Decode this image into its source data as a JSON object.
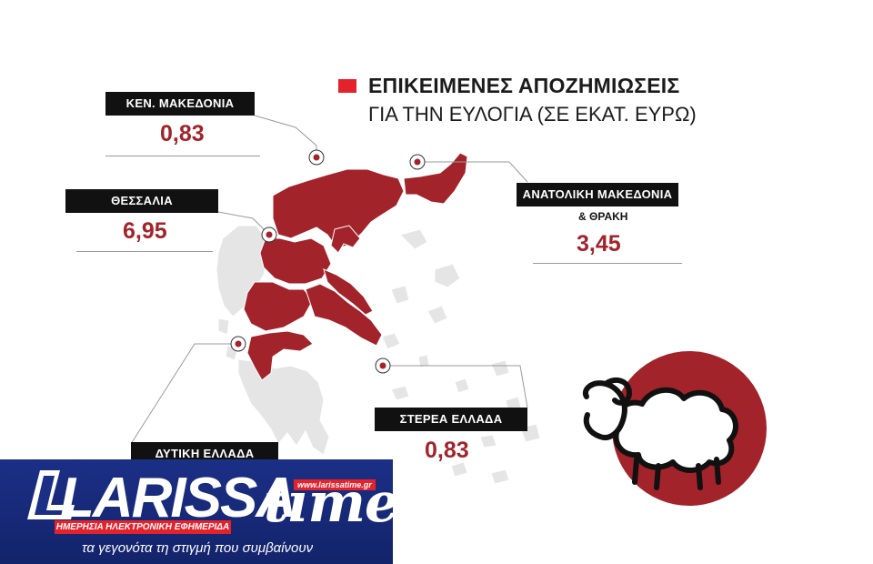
{
  "legend": {
    "title": "ΕΠΙΚΕΙΜΕΝΕΣ ΑΠΟΖΗΜΙΩΣΕΙΣ",
    "subtitle": "ΓΙΑ ΤΗΝ ΕΥΛΟΓΙΑ (ΣΕ ΕΚΑΤ. ΕΥΡΩ)",
    "color": "#e4222b"
  },
  "regions": [
    {
      "name": "ΚΕΝ. ΜΑΚΕΔΟΝΙΑ",
      "value": "0,83"
    },
    {
      "name": "ΘΕΣΣΑΛΙΑ",
      "value": "6,95"
    },
    {
      "name": "ΑΝΑΤΟΛΙΚΗ ΜΑΚΕΔΟΝΙΑ",
      "name_line2": "& ΘΡΑΚΗ",
      "value": "3,45"
    },
    {
      "name": "ΣΤΕΡΕΑ ΕΛΛΑΔΑ",
      "value": "0,83"
    },
    {
      "name": "ΔΥΤΙΚΗ ΕΛΛΑΔΑ",
      "value": ""
    }
  ],
  "colors": {
    "map_highlight": "#a3232b",
    "map_base": "#e5e5e5",
    "value_text": "#a3232b",
    "circle": "#a3232b",
    "banner": "#1b2f86"
  },
  "icon": "sheep-icon",
  "logo": {
    "brand": "LARISSA",
    "brand_suffix": "time",
    "url": "www.larissatime.gr",
    "strip": "ΗΜΕΡΗΣΙΑ ΗΛΕΚΤΡΟΝΙΚΗ ΕΦΗΜΕΡΙΔΑ",
    "slogan": "τα γεγονότα τη στιγμή που συμβαίνουν"
  }
}
